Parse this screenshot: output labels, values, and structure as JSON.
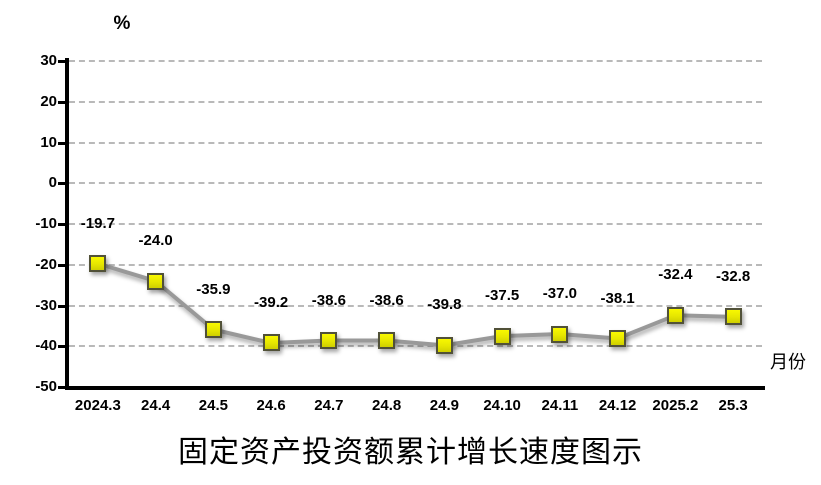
{
  "unit_label": "%",
  "x_axis_label": "月份",
  "title": "固定资产投资额累计增长速度图示",
  "chart_data": {
    "type": "line",
    "title": "固定资产投资额累计增长速度图示",
    "categories": [
      "2024.3",
      "24.4",
      "24.5",
      "24.6",
      "24.7",
      "24.8",
      "24.9",
      "24.10",
      "24.11",
      "24.12",
      "2025.2",
      "25.3"
    ],
    "values": [
      -19.7,
      -24.0,
      -35.9,
      -39.2,
      -38.6,
      -38.6,
      -39.8,
      -37.5,
      -37.0,
      -38.1,
      -32.4,
      -32.8
    ],
    "data_labels": [
      "-19.7",
      "-24.0",
      "-35.9",
      "-39.2",
      "-38.6",
      "-38.6",
      "-39.8",
      "-37.5",
      "-37.0",
      "-38.1",
      "-32.4",
      "-32.8"
    ],
    "ylabel": "%",
    "xlabel": "月份",
    "y_ticks": [
      30,
      20,
      10,
      0,
      -10,
      -20,
      -30,
      -40,
      -50
    ],
    "ylim": [
      -50,
      30
    ],
    "grid": "horizontal-dashed",
    "legend": "none",
    "marker": "square",
    "colors": {
      "line": "#999999",
      "marker_fill_top": "#f8f800",
      "marker_fill_bottom": "#cfcf00",
      "marker_border": "#515138",
      "gridline": "#b9b9b9",
      "axis": "#000000",
      "text": "#000000"
    }
  }
}
